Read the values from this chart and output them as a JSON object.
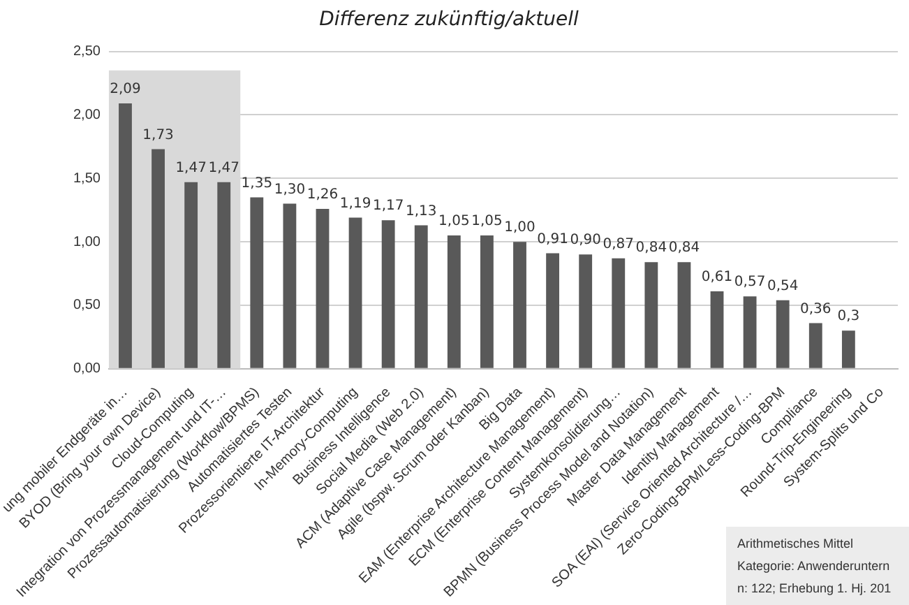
{
  "chart_data": {
    "type": "bar",
    "title": "Differenz zukünftig/aktuell",
    "categories": [
      "ung mobiler Endgeräte in…",
      "BYOD (Bring your own Device)",
      "Cloud-Computing",
      "Integration von Prozessmanagement und IT-…",
      "Prozessautomatisierung (Workflow/BPMS)",
      "Automatisiertes Testen",
      "Prozessorientierte IT-Architektur",
      "In-Memory-Computing",
      "Business Intelligence",
      "Social Media (Web 2.0)",
      "ACM (Adaptive Case Management)",
      "Agile (bspw. Scrum oder Kanban)",
      "Big Data",
      "EAM (Enterprise Architecture Management)",
      "ECM (Enterprise Content Management)",
      "Systemkonsolidierung…",
      "BPMN (Business Process Model and Notation)",
      "Master Data Management",
      "Identity Management",
      "SOA (EAI) (Service Oriented Architecture /…",
      "Zero-Coding-BPM/Less-Coding-BPM",
      "Compliance",
      "Round-Trip-Engineering",
      "System-Splits und Co"
    ],
    "values": [
      2.09,
      1.73,
      1.47,
      1.47,
      1.35,
      1.3,
      1.26,
      1.19,
      1.17,
      1.13,
      1.05,
      1.05,
      1.0,
      0.91,
      0.9,
      0.87,
      0.84,
      0.84,
      0.61,
      0.57,
      0.54,
      0.36,
      0.3,
      null
    ],
    "value_labels": [
      "2,09",
      "1,73",
      "1,47",
      "1,47",
      "1,35",
      "1,30",
      "1,26",
      "1,19",
      "1,17",
      "1,13",
      "1,05",
      "1,05",
      "1,00",
      "0,91",
      "0,90",
      "0,87",
      "0,84",
      "0,84",
      "0,61",
      "0,57",
      "0,54",
      "0,36",
      "0,3",
      null
    ],
    "color": "#595959",
    "ylim": [
      0,
      2.5
    ],
    "yticks": [
      {
        "value": 0,
        "label": "0,00"
      },
      {
        "value": 0.5,
        "label": "0,50"
      },
      {
        "value": 1,
        "label": "1,00"
      },
      {
        "value": 1.5,
        "label": "1,50"
      },
      {
        "value": 2,
        "label": "2,00"
      },
      {
        "value": 2.5,
        "label": "2,50"
      }
    ],
    "grid": "y",
    "legend": false,
    "bands": [
      {
        "axis": "x",
        "from": "ung mobiler Endgeräte in…",
        "to": "Integration von Prozessmanagement und IT-…",
        "color": "#d9d9d9"
      }
    ],
    "annotations": [
      "Arithmetisches Mittel",
      "Kategorie: Anwenderuntern",
      "n: 122; Erhebung 1. Hj. 201"
    ]
  }
}
